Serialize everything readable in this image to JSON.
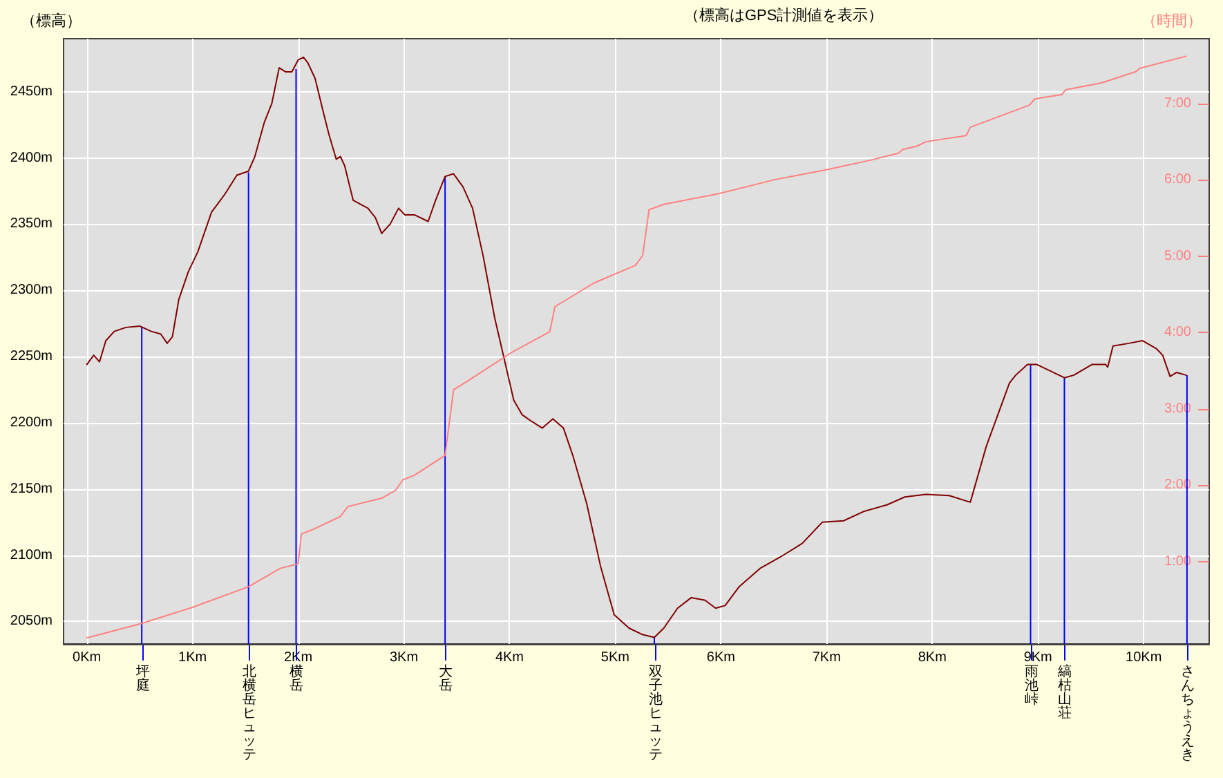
{
  "chart_data": {
    "type": "line",
    "title": "（標高はGPS計測値を表示）",
    "ylabel": "（標高）",
    "y2label": "（時間）",
    "series": [
      {
        "color": "#800000",
        "x": [
          0,
          0.065,
          0.12,
          0.18,
          0.26,
          0.37,
          0.5,
          0.61,
          0.7,
          0.76,
          0.81,
          0.87,
          0.96,
          1.05,
          1.18,
          1.31,
          1.42,
          1.53,
          1.59,
          1.68,
          1.75,
          1.82,
          1.88,
          1.94,
          2.0,
          2.05,
          2.09,
          2.16,
          2.23,
          2.29,
          2.36,
          2.4,
          2.44,
          2.52,
          2.66,
          2.73,
          2.79,
          2.87,
          2.95,
          3.01,
          3.1,
          3.23,
          3.3,
          3.39,
          3.47,
          3.56,
          3.65,
          3.75,
          3.86,
          3.95,
          4.04,
          4.12,
          4.21,
          4.31,
          4.41,
          4.51,
          4.6,
          4.73,
          4.86,
          4.99,
          5.13,
          5.26,
          5.37,
          5.46,
          5.59,
          5.72,
          5.85,
          5.95,
          6.04,
          6.17,
          6.37,
          6.57,
          6.77,
          6.96,
          7.16,
          7.35,
          7.57,
          7.74,
          7.94,
          8.16,
          8.36,
          8.51,
          8.62,
          8.73,
          8.79,
          8.9,
          8.99,
          9.12,
          9.25,
          9.34,
          9.51,
          9.64,
          9.66,
          9.71,
          9.86,
          9.99,
          10.12,
          10.18,
          10.25,
          10.31,
          10.4
        ],
        "values": [
          2244,
          2251,
          2246,
          2262,
          2269,
          2272,
          2273,
          2269,
          2267,
          2260,
          2265,
          2293,
          2314,
          2329,
          2359,
          2373,
          2387,
          2390,
          2401,
          2427,
          2441,
          2468,
          2465,
          2465,
          2474,
          2476,
          2472,
          2460,
          2437,
          2418,
          2399,
          2401,
          2394,
          2368,
          2362,
          2355,
          2343,
          2350,
          2362,
          2357,
          2357,
          2352,
          2368,
          2386,
          2388,
          2378,
          2362,
          2326,
          2279,
          2248,
          2217,
          2206,
          2201,
          2196,
          2203,
          2196,
          2175,
          2139,
          2092,
          2055,
          2045,
          2040,
          2038,
          2045,
          2060,
          2068,
          2066,
          2060,
          2062,
          2076,
          2090,
          2099,
          2109,
          2125,
          2126,
          2133,
          2138,
          2144,
          2146,
          2145,
          2140,
          2182,
          2206,
          2230,
          2236,
          2244,
          2244,
          2239,
          2234,
          2236,
          2244,
          2244,
          2242,
          2258,
          2260,
          2262,
          2256,
          2251,
          2235,
          2238,
          2236
        ]
      },
      {
        "color": "#ff8080",
        "axis": "y2",
        "x": [
          0,
          0.52,
          1.0,
          1.53,
          1.83,
          2.0,
          2.03,
          2.14,
          2.4,
          2.47,
          2.79,
          2.92,
          2.99,
          3.1,
          3.39,
          3.47,
          3.62,
          4.02,
          4.38,
          4.43,
          4.8,
          5.19,
          5.26,
          5.32,
          5.46,
          5.98,
          6.5,
          7.02,
          7.42,
          7.68,
          7.72,
          7.85,
          7.94,
          8.32,
          8.36,
          8.92,
          8.97,
          9.23,
          9.26,
          9.6,
          9.93,
          9.96,
          10.4
        ],
        "values": [
          0,
          0.19,
          0.4,
          0.67,
          0.91,
          0.97,
          1.36,
          1.42,
          1.59,
          1.72,
          1.83,
          1.93,
          2.07,
          2.13,
          2.39,
          3.25,
          3.38,
          3.74,
          4.01,
          4.34,
          4.65,
          4.88,
          5.01,
          5.61,
          5.68,
          5.82,
          6.0,
          6.14,
          6.26,
          6.35,
          6.4,
          6.44,
          6.5,
          6.58,
          6.69,
          6.98,
          7.06,
          7.12,
          7.18,
          7.27,
          7.42,
          7.46,
          7.62
        ]
      },
      {
        "type": "bar",
        "color": "#0000ff",
        "x": [
          0.52,
          1.53,
          1.98,
          3.39,
          5.37,
          8.93,
          9.25,
          10.41
        ],
        "values": [
          2272,
          2389,
          2467,
          2386,
          2038,
          2244,
          2234,
          2236
        ]
      }
    ],
    "xlim": [
      -0.22,
      10.62
    ],
    "xticks": [
      {
        "value": 0,
        "label": "0Km"
      },
      {
        "value": 1,
        "label": "1Km"
      },
      {
        "value": 2,
        "label": "2Km"
      },
      {
        "value": 3,
        "label": "3Km"
      },
      {
        "value": 4,
        "label": "4Km"
      },
      {
        "value": 5,
        "label": "5Km"
      },
      {
        "value": 6,
        "label": "6Km"
      },
      {
        "value": 7,
        "label": "7Km"
      },
      {
        "value": 8,
        "label": "8Km"
      },
      {
        "value": 9,
        "label": "9Km"
      },
      {
        "value": 10,
        "label": "10Km"
      }
    ],
    "ylim": [
      2033,
      2490
    ],
    "yticks": [
      {
        "value": 2050,
        "label": "2050m"
      },
      {
        "value": 2100,
        "label": "2100m"
      },
      {
        "value": 2150,
        "label": "2150m"
      },
      {
        "value": 2200,
        "label": "2200m"
      },
      {
        "value": 2250,
        "label": "2250m"
      },
      {
        "value": 2300,
        "label": "2300m"
      },
      {
        "value": 2350,
        "label": "2350m"
      },
      {
        "value": 2400,
        "label": "2400m"
      },
      {
        "value": 2450,
        "label": "2450m"
      }
    ],
    "y2lim": [
      -0.08,
      7.85
    ],
    "y2ticks": [
      {
        "value": 1,
        "label": "1:00"
      },
      {
        "value": 2,
        "label": "2:00"
      },
      {
        "value": 3,
        "label": "3:00"
      },
      {
        "value": 4,
        "label": "4:00"
      },
      {
        "value": 5,
        "label": "5:00"
      },
      {
        "value": 6,
        "label": "6:00"
      },
      {
        "value": 7,
        "label": "7:00"
      }
    ],
    "annotations": [
      "坪庭",
      "北横岳ヒュッテ",
      "横岳",
      "大岳",
      "双子池ヒュッテ",
      "雨池峠",
      "縞枯山荘",
      "さんちょうえき"
    ],
    "grid": true,
    "marker": "none",
    "line_style": "solid"
  }
}
